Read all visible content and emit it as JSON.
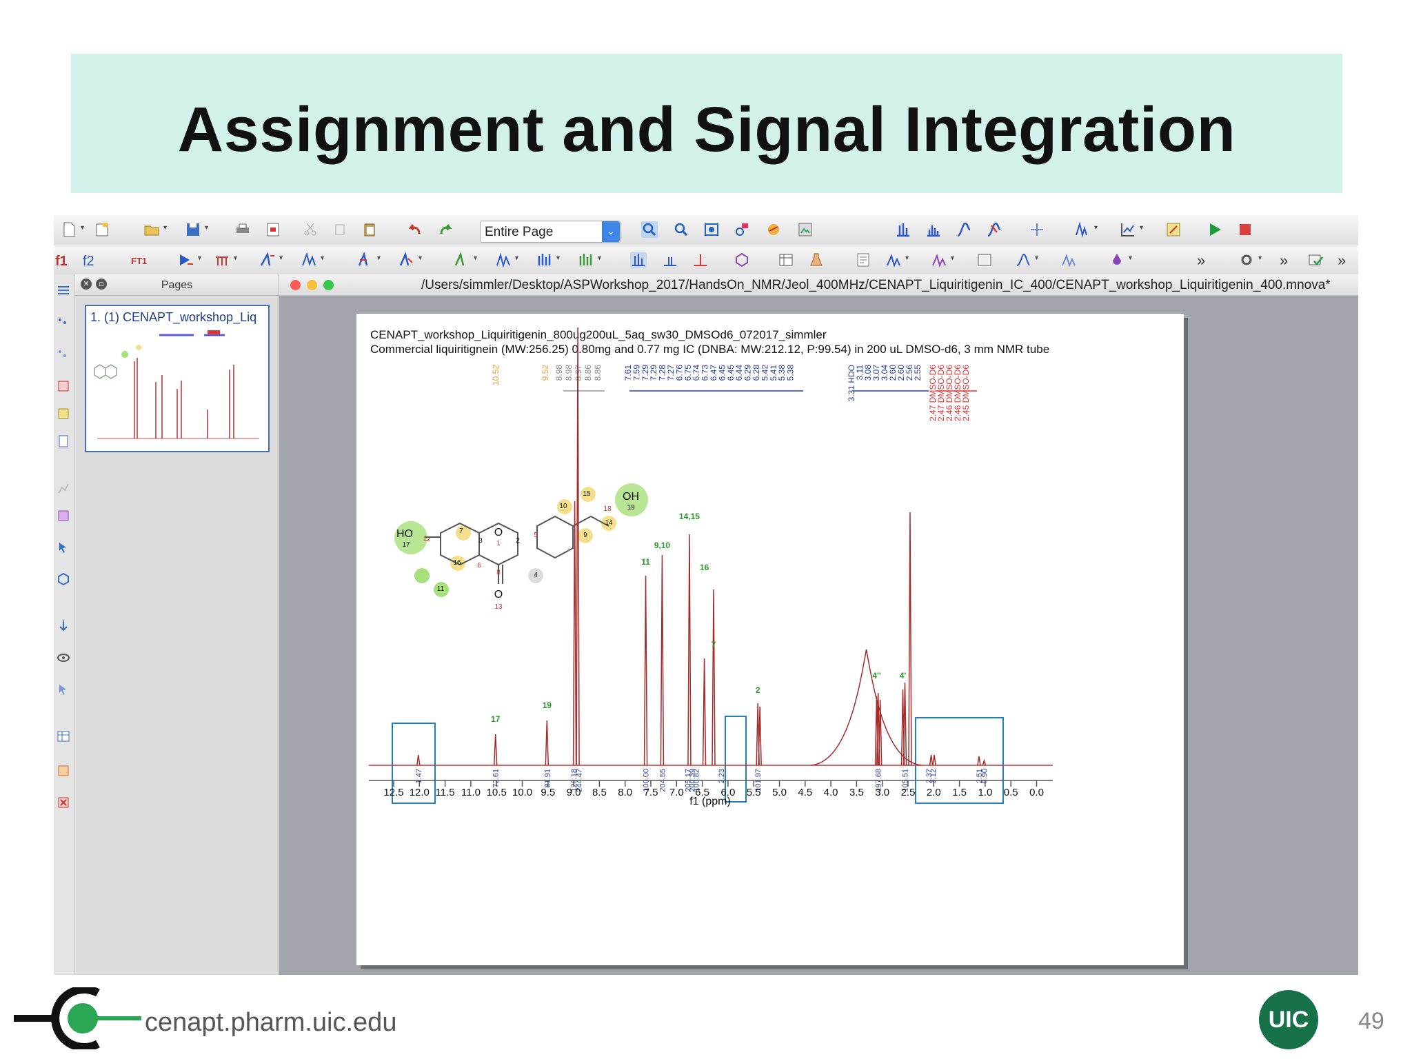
{
  "slide": {
    "title": "Assignment and Signal Integration",
    "footer_url": "cenapt.pharm.uic.edu",
    "page_number": "49",
    "badge": "UIC"
  },
  "app": {
    "toolbar1": {
      "zoom_value": "Entire Page"
    },
    "toolbar2": {
      "tab_f1": "f1",
      "tab_f2": "f2",
      "ft_label": "FT1"
    },
    "pages_panel": {
      "title": "Pages",
      "thumb_label": "1. (1) CENAPT_workshop_Liq"
    },
    "document": {
      "file_path": "/Users/simmler/Desktop/ASPWorkshop_2017/HandsOn_NMR/Jeol_400MHz/CENAPT_Liquiritigenin_IC_400/CENAPT_workshop_Liquiritigenin_400.mnova*"
    }
  },
  "spectrum": {
    "heading_line1": "CENAPT_workshop_Liquiritigenin_800ug200uL_5aq_sw30_DMSOd6_072017_simmler",
    "heading_line2": "Commercial liquiritignein (MW:256.25) 0.80mg  and 0.77 mg IC (DNBA: MW:212.12, P:99.54) in 200 uL DMSO-d6, 3 mm NMR tube",
    "xlabel": "f1 (ppm)",
    "xticks": [
      "12.5",
      "12.0",
      "11.5",
      "11.0",
      "10.5",
      "10.0",
      "9.5",
      "9.0",
      "8.5",
      "8.0",
      "7.5",
      "7.0",
      "6.5",
      "6.0",
      "5.5",
      "5.0",
      "4.5",
      "4.0",
      "3.5",
      "3.0",
      "2.5",
      "2.0",
      "1.5",
      "1.0",
      "0.5",
      "0.0"
    ],
    "peak_labels_orange": [
      "10.52",
      "9.52"
    ],
    "peak_labels_gray": [
      "8.98",
      "8.98",
      "8.97",
      "8.86",
      "8.86"
    ],
    "peak_labels_blue_a": [
      "7.61",
      "7.59",
      "7.29",
      "7.29",
      "7.28",
      "7.27",
      "6.76",
      "6.75",
      "6.74",
      "6.73",
      "6.47",
      "6.45",
      "6.45",
      "6.44",
      "6.29",
      "6.28",
      "5.42",
      "5.41",
      "5.38",
      "5.38"
    ],
    "peak_labels_blue_b": [
      "3.31 HDO",
      "3.11",
      "3.08",
      "3.07",
      "3.04",
      "2.60",
      "2.60",
      "2.56",
      "2.55"
    ],
    "peak_labels_red": [
      "2.47 DMSO-D6",
      "2.47 DMSO-D6",
      "2.46 DMSO-D6",
      "2.46 DMSO-D6",
      "2.45 DMSO-D6"
    ],
    "assign_labels": [
      "17",
      "19",
      "11",
      "9,10",
      "14,15",
      "7",
      "16",
      "2",
      "4''",
      "4'"
    ],
    "integrals": [
      "1.47",
      "72.61",
      "81.91",
      "120.18",
      "244.47",
      "100.00",
      "204.55",
      "205.17",
      "200.39",
      "100.82",
      "2.23",
      "101.97",
      "197.68",
      "105.51",
      "2.37",
      "3.12",
      "2.51",
      "0.90"
    ],
    "molecule_labels": [
      "HO",
      "17",
      "12",
      "7",
      "3",
      "O",
      "1",
      "2",
      "5",
      "10",
      "15",
      "18",
      "OH",
      "19",
      "9",
      "14",
      "16",
      "11",
      "6",
      "4",
      "8",
      "O",
      "13"
    ]
  }
}
